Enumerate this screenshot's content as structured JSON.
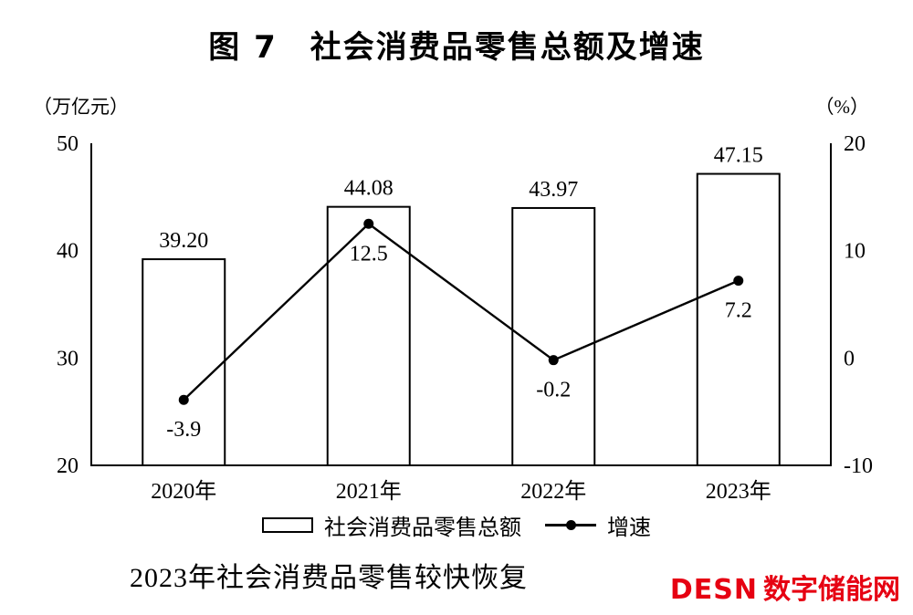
{
  "figure": {
    "title": "图 7　社会消费品零售总额及增速",
    "caption": "2023年社会消费品零售较快恢复"
  },
  "chart_data": {
    "type": "bar",
    "subtype": "bar+line combo, dual axis",
    "title": "图 7　社会消费品零售总额及增速",
    "categories": [
      "2020年",
      "2021年",
      "2022年",
      "2023年"
    ],
    "series": [
      {
        "name": "社会消费品零售总额",
        "type": "bar",
        "axis": "left",
        "values": [
          39.2,
          44.08,
          43.97,
          47.15
        ],
        "value_labels": [
          "39.20",
          "44.08",
          "43.97",
          "47.15"
        ]
      },
      {
        "name": "增速",
        "type": "line",
        "axis": "right",
        "values": [
          -3.9,
          12.5,
          -0.2,
          7.2
        ],
        "value_labels": [
          "-3.9",
          "12.5",
          "-0.2",
          "7.2"
        ]
      }
    ],
    "left_axis": {
      "unit": "（万亿元）",
      "range": [
        20,
        50
      ],
      "ticks": [
        50,
        40,
        30,
        20
      ]
    },
    "right_axis": {
      "unit": "（%）",
      "range": [
        -10,
        20
      ],
      "ticks": [
        20,
        10,
        0,
        -10
      ]
    },
    "grid": false,
    "legend_position": "bottom",
    "colors": {
      "bar_fill": "#ffffff",
      "bar_stroke": "#000000",
      "line": "#000000",
      "marker": "#000000",
      "text": "#000000"
    }
  },
  "legend": {
    "bar_label": "社会消费品零售总额",
    "line_label": "增速"
  },
  "watermark": {
    "text_en": "DESN",
    "text_zh": "数字储能网",
    "color": "#e60012"
  }
}
